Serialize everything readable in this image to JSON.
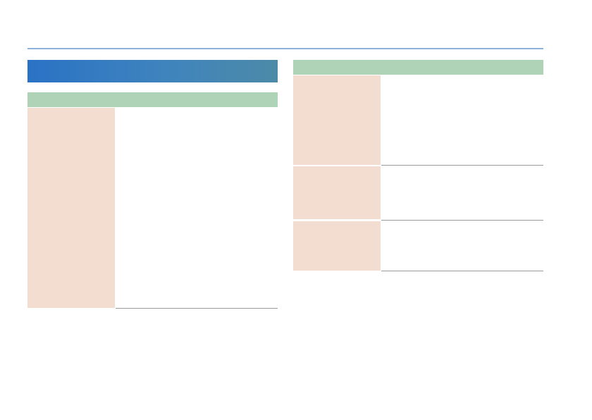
{
  "title_bar": {
    "label": ""
  },
  "left_section": {
    "header": "",
    "rows": [
      {
        "label": "",
        "description": ""
      }
    ]
  },
  "right_section": {
    "header": "",
    "rows": [
      {
        "label": "",
        "description": ""
      },
      {
        "label": "",
        "description": ""
      },
      {
        "label": "",
        "description": ""
      }
    ]
  },
  "colors": {
    "top_rule": "#8fb1d9",
    "title_gradient_start": "#2a72c5",
    "title_gradient_end": "#4d8aa8",
    "section_header": "#afd3b7",
    "label_cell": "#f3dcd0",
    "row_rule": "#9a9a9a"
  }
}
